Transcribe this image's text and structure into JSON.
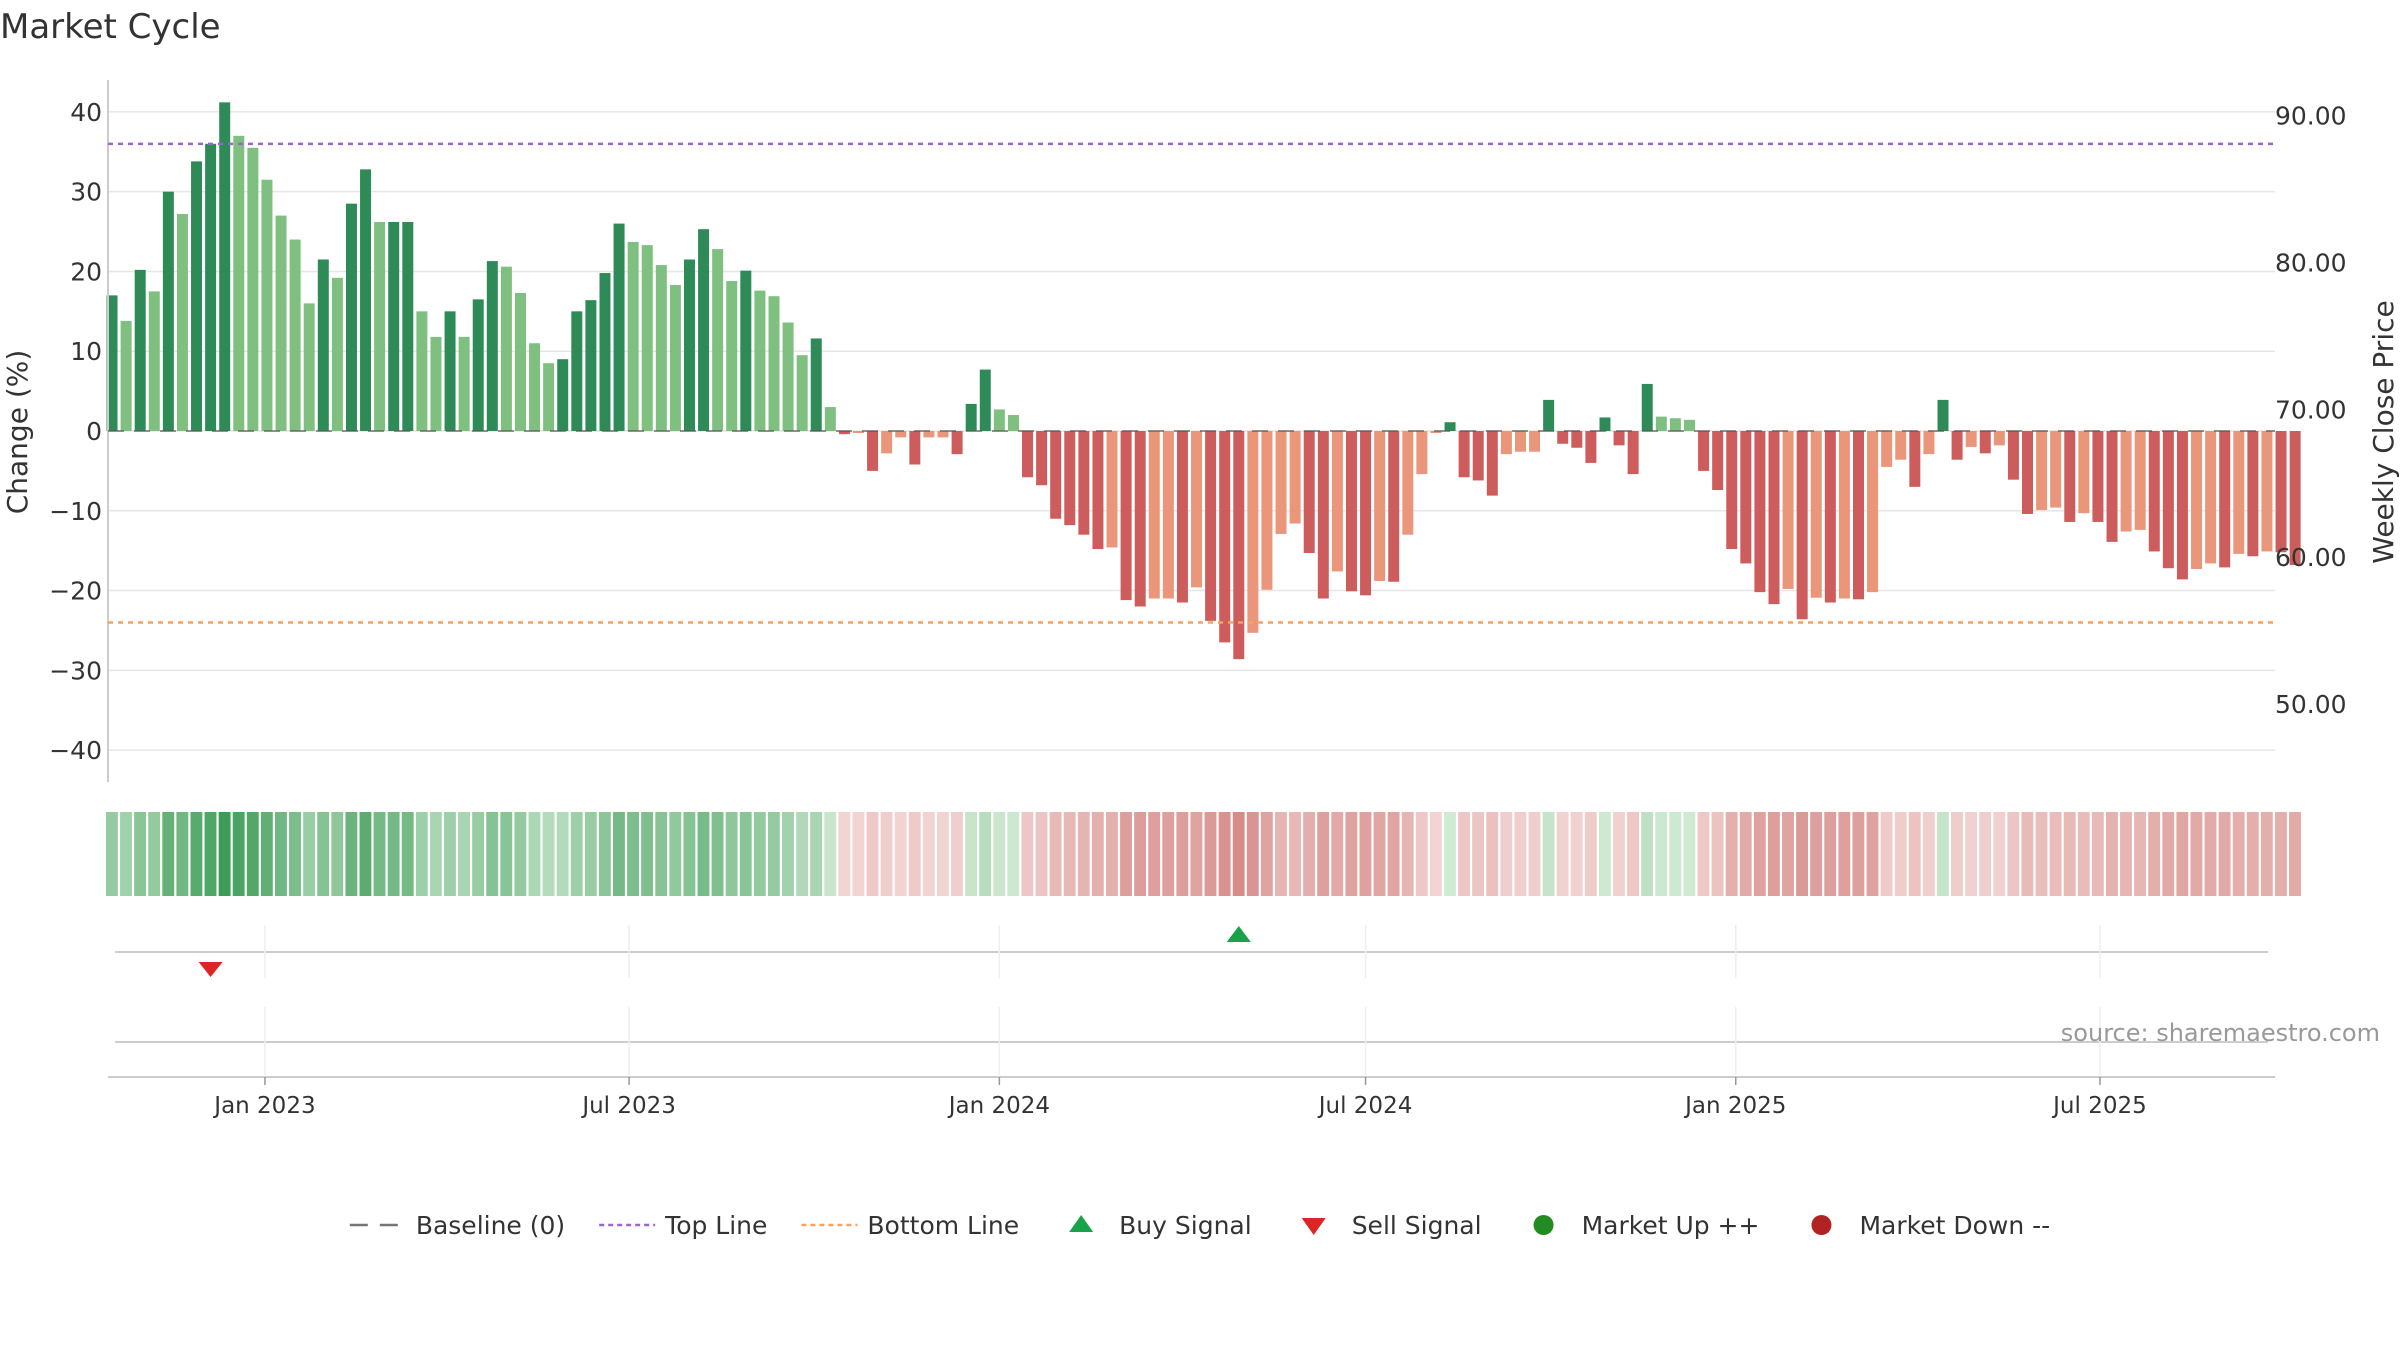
{
  "chart_data": {
    "type": "bar",
    "title": "Market Cycle",
    "ylabel": "Change (%)",
    "y2label": "Weekly Close Price",
    "source": "source: sharemaestro.com",
    "ylim": [
      -44,
      44
    ],
    "y2lim": [
      44.7,
      92.4
    ],
    "yticks": [
      40,
      30,
      20,
      10,
      0,
      -10,
      -20,
      -30,
      -40
    ],
    "yticklabels": [
      "40",
      "30",
      "20",
      "10",
      "0",
      "−10",
      "−20",
      "−30",
      "−40"
    ],
    "y2ticks": [
      90,
      80,
      70,
      60,
      50
    ],
    "y2ticklabels": [
      "90.00",
      "80.00",
      "70.00",
      "60.00",
      "50.00"
    ],
    "top_line": 36,
    "bottom_line": -24,
    "x_range": [
      "2022-10-15",
      "2025-09-26"
    ],
    "xticks": [
      {
        "date": "2023-01-01",
        "label": "Jan 2023"
      },
      {
        "date": "2023-07-01",
        "label": "Jul 2023"
      },
      {
        "date": "2024-01-01",
        "label": "Jan 2024"
      },
      {
        "date": "2024-07-01",
        "label": "Jul 2024"
      },
      {
        "date": "2025-01-01",
        "label": "Jan 2025"
      },
      {
        "date": "2025-07-01",
        "label": "Jul 2025"
      }
    ],
    "first_week": "2022-10-17",
    "values": [
      17,
      13.8,
      20.2,
      17.5,
      30,
      27.2,
      33.8,
      36,
      41.2,
      37,
      35.5,
      31.5,
      27,
      24,
      16,
      21.5,
      19.2,
      28.5,
      32.8,
      26.2,
      26.2,
      26.2,
      15,
      11.8,
      15,
      11.8,
      16.5,
      21.3,
      20.6,
      17.3,
      11,
      8.5,
      9,
      15,
      16.4,
      19.8,
      26,
      23.7,
      23.3,
      20.8,
      18.3,
      21.5,
      25.3,
      22.8,
      18.8,
      20.1,
      17.6,
      16.9,
      13.6,
      9.5,
      11.6,
      3,
      -0.4,
      -0.2,
      -5,
      -2.8,
      -0.8,
      -4.2,
      -0.8,
      -0.8,
      -2.9,
      3.4,
      7.7,
      2.7,
      2,
      -5.8,
      -6.8,
      -11,
      -11.8,
      -13,
      -14.8,
      -14.6,
      -21.2,
      -22,
      -21,
      -21,
      -21.5,
      -19.6,
      -23.8,
      -26.5,
      -28.6,
      -25.3,
      -19.9,
      -12.9,
      -11.6,
      -15.3,
      -21,
      -17.6,
      -20.1,
      -20.6,
      -18.8,
      -18.9,
      -13,
      -5.4,
      -0.2,
      1.1,
      -5.8,
      -6.2,
      -8.1,
      -2.9,
      -2.6,
      -2.6,
      3.9,
      -1.6,
      -2.1,
      -4,
      1.7,
      -1.8,
      -5.4,
      5.9,
      1.8,
      1.6,
      1.4,
      -5,
      -7.4,
      -14.8,
      -16.6,
      -20.2,
      -21.7,
      -19.8,
      -23.6,
      -20.9,
      -21.5,
      -21,
      -21.1,
      -20.2,
      -4.5,
      -3.6,
      -7,
      -2.9,
      3.9,
      -3.6,
      -2,
      -2.8,
      -1.8,
      -6.1,
      -10.4,
      -9.9,
      -9.6,
      -11.4,
      -10.3,
      -11.4,
      -13.9,
      -12.6,
      -12.4,
      -15.1,
      -17.2,
      -18.6,
      -17.3,
      -16.6,
      -17.1,
      -15.4,
      -15.7,
      -15.1,
      -15.2,
      -16.8
    ],
    "colors": {
      "up_strong": "#2e8b57",
      "up_light": "#7fbf7f",
      "down_strong": "#cd5c5c",
      "down_light": "#e9967a",
      "top_line": "#9966cc",
      "bottom_line": "#f4a460",
      "buy": "#16a34a",
      "sell": "#dc2626",
      "market_up": "#228b22",
      "market_down": "#b22222",
      "baseline": "#555555"
    },
    "signals": [
      {
        "type": "sell",
        "date": "2022-12-05"
      },
      {
        "type": "buy",
        "date": "2024-04-29"
      }
    ],
    "legend": [
      {
        "key": "baseline",
        "label": "Baseline (0)"
      },
      {
        "key": "top",
        "label": "Top Line"
      },
      {
        "key": "bottom",
        "label": "Bottom Line"
      },
      {
        "key": "buy",
        "label": "Buy Signal"
      },
      {
        "key": "sell",
        "label": "Sell Signal"
      },
      {
        "key": "mup",
        "label": "Market Up ++"
      },
      {
        "key": "mdown",
        "label": "Market Down --"
      }
    ]
  }
}
